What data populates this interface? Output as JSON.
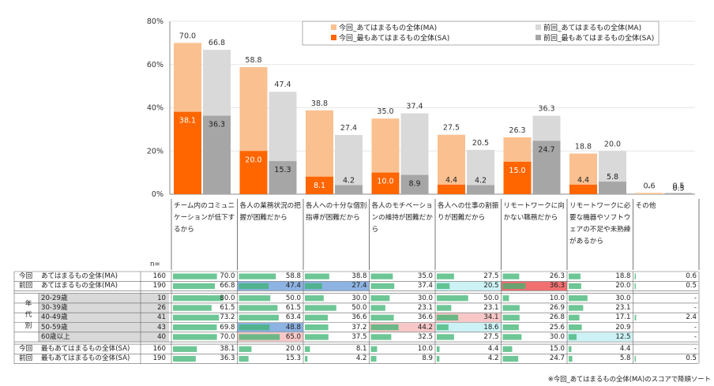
{
  "chart_data": {
    "type": "bar",
    "ylim": [
      0,
      80
    ],
    "y_ticks": [
      "0%",
      "20%",
      "40%",
      "60%",
      "80%"
    ],
    "categories": [
      "チーム内のコミュニケーションが低下するから",
      "各人の業務状況の把握が困難だから",
      "各人への十分な個別指導が困難だから",
      "各人のモチベーションの維持が困難だから",
      "各人への仕事の割振りが困難だから",
      "リモートワークに向かない職務だから",
      "リモートワークに必要な機器やソフトウェアの不足や未熟練があるから",
      "その他"
    ],
    "series": [
      {
        "name": "今回_あてはまるもの全体(MA)",
        "color": "#fac090",
        "values": [
          70.0,
          58.8,
          38.8,
          35.0,
          27.5,
          26.3,
          18.8,
          0.6
        ],
        "labels": [
          "70.0",
          "58.8",
          "38.8",
          "35.0",
          "27.5",
          "26.3",
          "18.8",
          "0.6"
        ]
      },
      {
        "name": "前回_あてはまるもの全体(MA)",
        "color": "#d9d9d9",
        "values": [
          66.8,
          47.4,
          27.4,
          37.4,
          20.5,
          36.3,
          20.0,
          0.5
        ],
        "labels": [
          "66.8",
          "47.4",
          "27.4",
          "37.4",
          "20.5",
          "36.3",
          "20.0",
          "0.5"
        ]
      },
      {
        "name": "今回_最もあてはまるもの全体(SA)",
        "color": "#ff6600",
        "values": [
          38.1,
          20.0,
          8.1,
          10.0,
          4.4,
          15.0,
          4.4,
          0
        ],
        "labels": [
          "38.1",
          "20.0",
          "8.1",
          "10.0",
          "4.4",
          "15.0",
          "4.4",
          "-"
        ]
      },
      {
        "name": "前回_最もあてはまるもの全体(SA)",
        "color": "#a6a6a6",
        "values": [
          36.3,
          15.3,
          4.2,
          8.9,
          4.2,
          24.7,
          5.8,
          0.5
        ],
        "labels": [
          "36.3",
          "15.3",
          "4.2",
          "8.9",
          "4.2",
          "24.7",
          "5.8",
          "0.5"
        ]
      }
    ]
  },
  "table": {
    "n_header": "n=",
    "side_label": [
      "年",
      "代",
      "別"
    ],
    "rows": [
      {
        "prefix": "今回",
        "label": "あてはまるもの全体(MA)",
        "n": "160",
        "kind": "ma",
        "values": [
          "70.0",
          "58.8",
          "38.8",
          "35.0",
          "27.5",
          "26.3",
          "18.8",
          "0.6"
        ],
        "highlights": [
          "",
          "",
          "",
          "",
          "",
          "",
          "",
          ""
        ]
      },
      {
        "prefix": "前回",
        "label": "あてはまるもの全体(MA)",
        "n": "190",
        "kind": "ma",
        "values": [
          "66.8",
          "47.4",
          "27.4",
          "37.4",
          "20.5",
          "36.3",
          "20.0",
          "0.5"
        ],
        "highlights": [
          "",
          "blue",
          "blue",
          "",
          "lightcyan",
          "red",
          "",
          ""
        ]
      },
      {
        "prefix": "",
        "label": "20-29歳",
        "n": "10",
        "kind": "age",
        "values": [
          "80.0",
          "50.0",
          "30.0",
          "30.0",
          "50.0",
          "10.0",
          "30.0",
          "-"
        ],
        "highlights": [
          "",
          "",
          "",
          "",
          "",
          "",
          "",
          ""
        ]
      },
      {
        "prefix": "",
        "label": "30-39歳",
        "n": "26",
        "kind": "age",
        "values": [
          "61.5",
          "61.5",
          "50.0",
          "23.1",
          "23.1",
          "26.9",
          "23.1",
          "-"
        ],
        "highlights": [
          "",
          "",
          "",
          "",
          "",
          "",
          "",
          ""
        ]
      },
      {
        "prefix": "",
        "label": "40-49歳",
        "n": "41",
        "kind": "age",
        "values": [
          "73.2",
          "63.4",
          "36.6",
          "36.6",
          "34.1",
          "26.8",
          "17.1",
          "2.4"
        ],
        "highlights": [
          "",
          "",
          "",
          "",
          "pink",
          "",
          "",
          ""
        ]
      },
      {
        "prefix": "",
        "label": "50-59歳",
        "n": "43",
        "kind": "age",
        "values": [
          "69.8",
          "48.8",
          "37.2",
          "44.2",
          "18.6",
          "25.6",
          "20.9",
          "-"
        ],
        "highlights": [
          "",
          "blue",
          "",
          "pink",
          "lightcyan",
          "",
          "",
          ""
        ]
      },
      {
        "prefix": "",
        "label": "60歳以上",
        "n": "40",
        "kind": "age",
        "values": [
          "70.0",
          "65.0",
          "37.5",
          "32.5",
          "27.5",
          "30.0",
          "12.5",
          "-"
        ],
        "highlights": [
          "",
          "pink",
          "",
          "",
          "",
          "",
          "lightcyan",
          ""
        ]
      },
      {
        "prefix": "今回",
        "label": "最もあてはまるもの全体(SA)",
        "n": "160",
        "kind": "sa",
        "values": [
          "38.1",
          "20.0",
          "8.1",
          "10.0",
          "4.4",
          "15.0",
          "4.4",
          "-"
        ],
        "highlights": [
          "",
          "",
          "",
          "",
          "",
          "",
          "",
          ""
        ]
      },
      {
        "prefix": "前回",
        "label": "最もあてはまるもの全体(SA)",
        "n": "190",
        "kind": "sa",
        "values": [
          "36.3",
          "15.3",
          "4.2",
          "8.9",
          "4.2",
          "24.7",
          "5.8",
          "0.5"
        ],
        "highlights": [
          "",
          "",
          "",
          "",
          "",
          "",
          "",
          ""
        ]
      }
    ]
  },
  "footnote": "※今回_あてはまるもの全体(MA)のスコアで降順ソート",
  "colors": {
    "ma_now": "#fac090",
    "ma_prev": "#d9d9d9",
    "sa_now": "#ff6600",
    "sa_prev": "#a6a6a6",
    "cell_bar": "#3cb371",
    "highlight_blue": "#8db3e2",
    "highlight_red": "#f07070",
    "highlight_pink": "#f8c8c8",
    "highlight_lightcyan": "#ccf2f5",
    "age_row_bg": "#d9d9d9"
  }
}
